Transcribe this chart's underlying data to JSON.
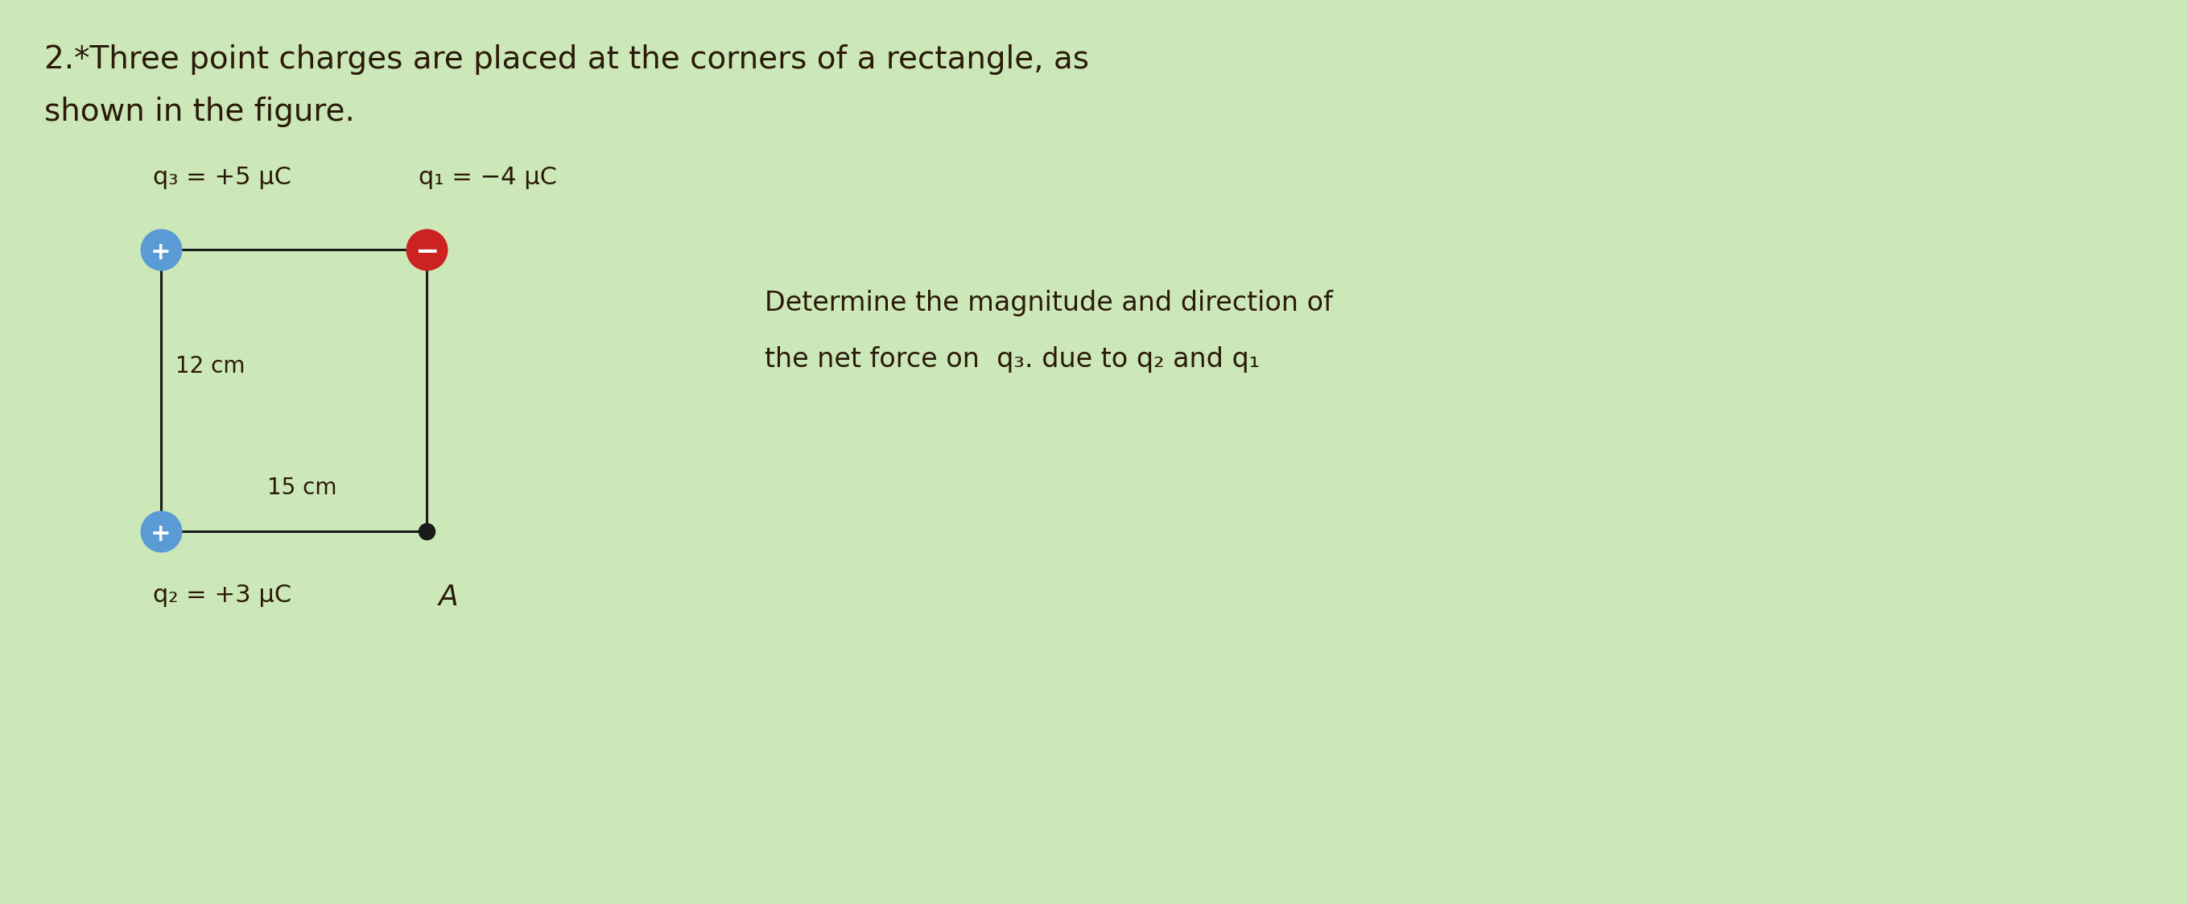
{
  "title_line1": "2.*Three point charges are placed at the corners of a rectangle, as",
  "title_line2": "shown in the figure.",
  "q3_label": "q₃ = +5 μC",
  "q1_label": "q₁ = −4 μC",
  "q2_label": "q₂ = +3 μC",
  "A_label": "A",
  "dim_vertical": "12 cm",
  "dim_horizontal": "15 cm",
  "problem_text_line1": "Determine the magnitude and direction of",
  "problem_text_line2": "the net force on  q₃. due to q₂ and q₁",
  "bg_color": "#cde8b8",
  "q3_color": "#5b9bd5",
  "q1_color": "#cc2222",
  "q2_color": "#5b9bd5",
  "A_color": "#1a1a1a",
  "line_color": "#1a1a1a",
  "text_color": "#2a1a0a",
  "title_fontsize": 28,
  "label_fontsize": 22,
  "dim_fontsize": 20,
  "problem_fontsize": 24,
  "dot_size": 400,
  "A_dot_size": 120
}
